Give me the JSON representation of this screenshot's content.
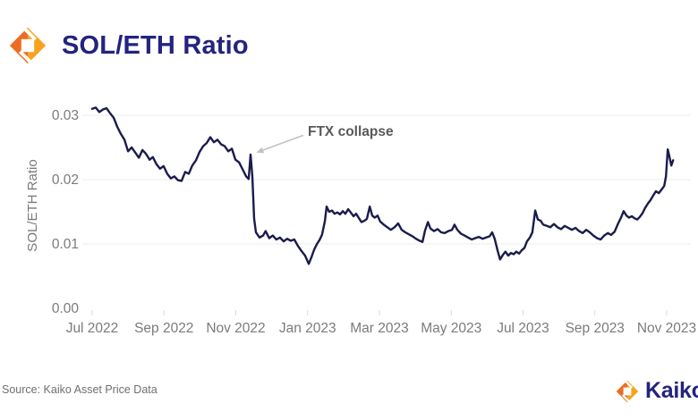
{
  "header": {
    "title": "SOL/ETH Ratio"
  },
  "branding": {
    "logo_icon": "kaiko-diamond-icon",
    "footer_wordmark": "Kaiko",
    "navy": "#232380",
    "orange_dark": "#ED6C23",
    "orange_light": "#F9A21D"
  },
  "footer": {
    "source": "Source: Kaiko Asset Price Data"
  },
  "chart_data": {
    "type": "line",
    "title": "SOL/ETH Ratio",
    "xlabel": "",
    "ylabel": "SOL/ETH Ratio",
    "x_unit": "months since Jul 2022",
    "ylim": [
      0,
      0.0335
    ],
    "grid": "horizontal",
    "grid_color": "#ececec",
    "axis_text_color": "#7b7b7b",
    "tick_mark_color": "#d9d9d9",
    "line_color": "#1B1B4D",
    "legend": "none",
    "x_ticks": [
      {
        "t": 0,
        "label": "Jul 2022"
      },
      {
        "t": 2,
        "label": "Sep 2022"
      },
      {
        "t": 4,
        "label": "Nov 2022"
      },
      {
        "t": 6,
        "label": "Jan 2023"
      },
      {
        "t": 8,
        "label": "Mar 2023"
      },
      {
        "t": 10,
        "label": "May 2023"
      },
      {
        "t": 12,
        "label": "Jul 2023"
      },
      {
        "t": 14,
        "label": "Sep 2023"
      },
      {
        "t": 16,
        "label": "Nov 2023"
      }
    ],
    "y_ticks": [
      {
        "value": 0.0,
        "label": "0.00"
      },
      {
        "value": 0.01,
        "label": "0.01"
      },
      {
        "value": 0.02,
        "label": "0.02"
      },
      {
        "value": 0.03,
        "label": "0.03"
      }
    ],
    "annotations": [
      {
        "text": "FTX collapse",
        "arrow_from": [
          5.88,
          0.0269
        ],
        "arrow_to": [
          4.57,
          0.0242
        ],
        "arrow_color": "#c2c2c2"
      }
    ],
    "series": [
      {
        "name": "SOL/ETH Ratio",
        "points": [
          [
            0,
            0.031
          ],
          [
            0.1,
            0.0312
          ],
          [
            0.2,
            0.0305
          ],
          [
            0.3,
            0.0309
          ],
          [
            0.4,
            0.0311
          ],
          [
            0.5,
            0.0303
          ],
          [
            0.6,
            0.0296
          ],
          [
            0.7,
            0.0282
          ],
          [
            0.8,
            0.0271
          ],
          [
            0.9,
            0.0262
          ],
          [
            1,
            0.0244
          ],
          [
            1.1,
            0.025
          ],
          [
            1.2,
            0.0242
          ],
          [
            1.3,
            0.0234
          ],
          [
            1.4,
            0.0246
          ],
          [
            1.5,
            0.024
          ],
          [
            1.6,
            0.0231
          ],
          [
            1.69,
            0.0235
          ],
          [
            1.79,
            0.0224
          ],
          [
            1.89,
            0.0217
          ],
          [
            1.99,
            0.0221
          ],
          [
            2.09,
            0.0209
          ],
          [
            2.19,
            0.0202
          ],
          [
            2.29,
            0.0205
          ],
          [
            2.39,
            0.0199
          ],
          [
            2.49,
            0.0198
          ],
          [
            2.59,
            0.0212
          ],
          [
            2.69,
            0.0209
          ],
          [
            2.79,
            0.0222
          ],
          [
            2.89,
            0.023
          ],
          [
            2.99,
            0.0243
          ],
          [
            3.09,
            0.0252
          ],
          [
            3.19,
            0.0257
          ],
          [
            3.29,
            0.0266
          ],
          [
            3.39,
            0.0258
          ],
          [
            3.49,
            0.0262
          ],
          [
            3.59,
            0.0255
          ],
          [
            3.69,
            0.0252
          ],
          [
            3.79,
            0.0244
          ],
          [
            3.89,
            0.0248
          ],
          [
            3.99,
            0.0231
          ],
          [
            4.09,
            0.0227
          ],
          [
            4.19,
            0.0216
          ],
          [
            4.29,
            0.0205
          ],
          [
            4.36,
            0.0201
          ],
          [
            4.41,
            0.0239
          ],
          [
            4.46,
            0.0205
          ],
          [
            4.51,
            0.0139
          ],
          [
            4.56,
            0.0118
          ],
          [
            4.66,
            0.011
          ],
          [
            4.76,
            0.0113
          ],
          [
            4.83,
            0.012
          ],
          [
            4.93,
            0.0109
          ],
          [
            5.03,
            0.0113
          ],
          [
            5.13,
            0.0107
          ],
          [
            5.23,
            0.011
          ],
          [
            5.33,
            0.0104
          ],
          [
            5.43,
            0.0108
          ],
          [
            5.53,
            0.0105
          ],
          [
            5.63,
            0.0107
          ],
          [
            5.73,
            0.0097
          ],
          [
            5.83,
            0.0089
          ],
          [
            5.93,
            0.0082
          ],
          [
            6.03,
            0.0069
          ],
          [
            6.11,
            0.008
          ],
          [
            6.18,
            0.0091
          ],
          [
            6.26,
            0.01
          ],
          [
            6.33,
            0.0106
          ],
          [
            6.4,
            0.0114
          ],
          [
            6.48,
            0.0135
          ],
          [
            6.53,
            0.0158
          ],
          [
            6.6,
            0.015
          ],
          [
            6.68,
            0.0152
          ],
          [
            6.75,
            0.0147
          ],
          [
            6.83,
            0.0149
          ],
          [
            6.9,
            0.0146
          ],
          [
            6.98,
            0.0151
          ],
          [
            7.05,
            0.0147
          ],
          [
            7.13,
            0.0154
          ],
          [
            7.2,
            0.0149
          ],
          [
            7.28,
            0.0143
          ],
          [
            7.35,
            0.0147
          ],
          [
            7.43,
            0.014
          ],
          [
            7.5,
            0.0134
          ],
          [
            7.58,
            0.0136
          ],
          [
            7.65,
            0.0139
          ],
          [
            7.73,
            0.0158
          ],
          [
            7.8,
            0.0144
          ],
          [
            7.87,
            0.0141
          ],
          [
            7.95,
            0.0144
          ],
          [
            8.02,
            0.0135
          ],
          [
            8.12,
            0.013
          ],
          [
            8.22,
            0.0126
          ],
          [
            8.32,
            0.0122
          ],
          [
            8.42,
            0.0126
          ],
          [
            8.52,
            0.0132
          ],
          [
            8.62,
            0.0122
          ],
          [
            8.72,
            0.0118
          ],
          [
            8.82,
            0.0115
          ],
          [
            8.92,
            0.0112
          ],
          [
            9.02,
            0.0108
          ],
          [
            9.12,
            0.0105
          ],
          [
            9.2,
            0.0103
          ],
          [
            9.27,
            0.0121
          ],
          [
            9.35,
            0.0134
          ],
          [
            9.42,
            0.0124
          ],
          [
            9.52,
            0.012
          ],
          [
            9.62,
            0.0123
          ],
          [
            9.72,
            0.0118
          ],
          [
            9.82,
            0.0117
          ],
          [
            9.92,
            0.012
          ],
          [
            10.02,
            0.0122
          ],
          [
            10.09,
            0.013
          ],
          [
            10.17,
            0.0122
          ],
          [
            10.27,
            0.0116
          ],
          [
            10.37,
            0.0113
          ],
          [
            10.47,
            0.011
          ],
          [
            10.57,
            0.0107
          ],
          [
            10.67,
            0.0109
          ],
          [
            10.77,
            0.0111
          ],
          [
            10.87,
            0.0108
          ],
          [
            10.97,
            0.011
          ],
          [
            11.07,
            0.0112
          ],
          [
            11.14,
            0.0118
          ],
          [
            11.21,
            0.0108
          ],
          [
            11.29,
            0.009
          ],
          [
            11.36,
            0.0076
          ],
          [
            11.44,
            0.0083
          ],
          [
            11.51,
            0.0088
          ],
          [
            11.59,
            0.0082
          ],
          [
            11.66,
            0.0086
          ],
          [
            11.74,
            0.0084
          ],
          [
            11.81,
            0.0088
          ],
          [
            11.89,
            0.0085
          ],
          [
            11.96,
            0.009
          ],
          [
            12.04,
            0.0094
          ],
          [
            12.11,
            0.0104
          ],
          [
            12.19,
            0.011
          ],
          [
            12.26,
            0.0118
          ],
          [
            12.34,
            0.0152
          ],
          [
            12.41,
            0.0138
          ],
          [
            12.49,
            0.0136
          ],
          [
            12.56,
            0.013
          ],
          [
            12.66,
            0.0128
          ],
          [
            12.76,
            0.0126
          ],
          [
            12.86,
            0.0131
          ],
          [
            12.96,
            0.0126
          ],
          [
            13.06,
            0.0123
          ],
          [
            13.16,
            0.0128
          ],
          [
            13.26,
            0.0125
          ],
          [
            13.36,
            0.0122
          ],
          [
            13.46,
            0.0125
          ],
          [
            13.56,
            0.012
          ],
          [
            13.66,
            0.0117
          ],
          [
            13.76,
            0.0122
          ],
          [
            13.86,
            0.0118
          ],
          [
            13.96,
            0.0113
          ],
          [
            14.06,
            0.0109
          ],
          [
            14.16,
            0.0107
          ],
          [
            14.26,
            0.0113
          ],
          [
            14.36,
            0.0117
          ],
          [
            14.45,
            0.0114
          ],
          [
            14.55,
            0.0119
          ],
          [
            14.65,
            0.0132
          ],
          [
            14.73,
            0.0141
          ],
          [
            14.8,
            0.0151
          ],
          [
            14.88,
            0.0144
          ],
          [
            14.95,
            0.0141
          ],
          [
            15.03,
            0.0143
          ],
          [
            15.1,
            0.014
          ],
          [
            15.18,
            0.0138
          ],
          [
            15.25,
            0.0142
          ],
          [
            15.33,
            0.0148
          ],
          [
            15.4,
            0.0156
          ],
          [
            15.48,
            0.0163
          ],
          [
            15.55,
            0.0168
          ],
          [
            15.63,
            0.0176
          ],
          [
            15.7,
            0.0182
          ],
          [
            15.78,
            0.0179
          ],
          [
            15.85,
            0.0184
          ],
          [
            15.93,
            0.019
          ],
          [
            15.98,
            0.0205
          ],
          [
            16.03,
            0.0247
          ],
          [
            16.08,
            0.0235
          ],
          [
            16.13,
            0.0222
          ],
          [
            16.18,
            0.023
          ]
        ]
      }
    ]
  }
}
